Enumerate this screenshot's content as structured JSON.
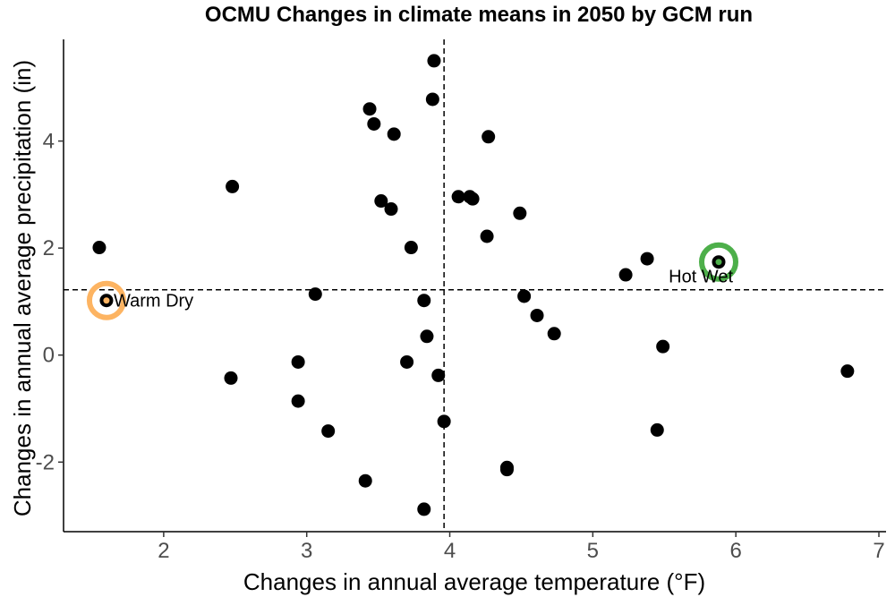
{
  "chart_data": {
    "type": "scatter",
    "title": "OCMU Changes in climate means in 2050 by GCM run",
    "xlabel": "Changes in annual average temperature (°F)",
    "ylabel": "Changes in annual average precipitation (in)",
    "xlim": [
      1.3,
      7.05
    ],
    "ylim": [
      -3.3,
      5.9
    ],
    "xticks": [
      2,
      3,
      4,
      5,
      6,
      7
    ],
    "yticks": [
      -2,
      0,
      2,
      4
    ],
    "xtick_labels": [
      "2",
      "3",
      "4",
      "5",
      "6",
      "7"
    ],
    "ytick_labels": [
      "-2",
      "0",
      "2",
      "4"
    ],
    "grid": false,
    "point_color": "#000000",
    "reference_lines": {
      "x": 3.96,
      "y": 1.22
    },
    "points": [
      {
        "x": 3.89,
        "y": 5.5
      },
      {
        "x": 3.88,
        "y": 4.78
      },
      {
        "x": 3.44,
        "y": 4.6
      },
      {
        "x": 3.47,
        "y": 4.32
      },
      {
        "x": 3.61,
        "y": 4.13
      },
      {
        "x": 4.27,
        "y": 4.08
      },
      {
        "x": 2.48,
        "y": 3.15
      },
      {
        "x": 4.06,
        "y": 2.96
      },
      {
        "x": 4.14,
        "y": 2.96
      },
      {
        "x": 4.16,
        "y": 2.92
      },
      {
        "x": 3.52,
        "y": 2.88
      },
      {
        "x": 3.59,
        "y": 2.73
      },
      {
        "x": 4.49,
        "y": 2.65
      },
      {
        "x": 4.26,
        "y": 2.22
      },
      {
        "x": 1.55,
        "y": 2.01
      },
      {
        "x": 3.73,
        "y": 2.01
      },
      {
        "x": 5.38,
        "y": 1.8
      },
      {
        "x": 5.88,
        "y": 1.74
      },
      {
        "x": 5.23,
        "y": 1.5
      },
      {
        "x": 3.06,
        "y": 1.14
      },
      {
        "x": 4.52,
        "y": 1.1
      },
      {
        "x": 3.82,
        "y": 1.02
      },
      {
        "x": 1.6,
        "y": 1.02
      },
      {
        "x": 4.61,
        "y": 0.74
      },
      {
        "x": 4.73,
        "y": 0.4
      },
      {
        "x": 3.84,
        "y": 0.35
      },
      {
        "x": 5.49,
        "y": 0.16
      },
      {
        "x": 2.94,
        "y": -0.13
      },
      {
        "x": 3.7,
        "y": -0.13
      },
      {
        "x": 6.78,
        "y": -0.3
      },
      {
        "x": 3.92,
        "y": -0.38
      },
      {
        "x": 2.47,
        "y": -0.43
      },
      {
        "x": 2.94,
        "y": -0.86
      },
      {
        "x": 3.96,
        "y": -1.24
      },
      {
        "x": 3.15,
        "y": -1.42
      },
      {
        "x": 5.45,
        "y": -1.4
      },
      {
        "x": 4.4,
        "y": -2.1
      },
      {
        "x": 4.4,
        "y": -2.14
      },
      {
        "x": 3.41,
        "y": -2.35
      },
      {
        "x": 3.82,
        "y": -2.88
      }
    ],
    "highlights": [
      {
        "label": "Warm Dry",
        "x": 1.6,
        "y": 1.02,
        "color": "#fdb462",
        "inner_color": "#fdb462"
      },
      {
        "label": "Hot Wet",
        "x": 5.88,
        "y": 1.74,
        "color": "#4daf4a",
        "inner_color": "#4daf4a"
      }
    ]
  }
}
